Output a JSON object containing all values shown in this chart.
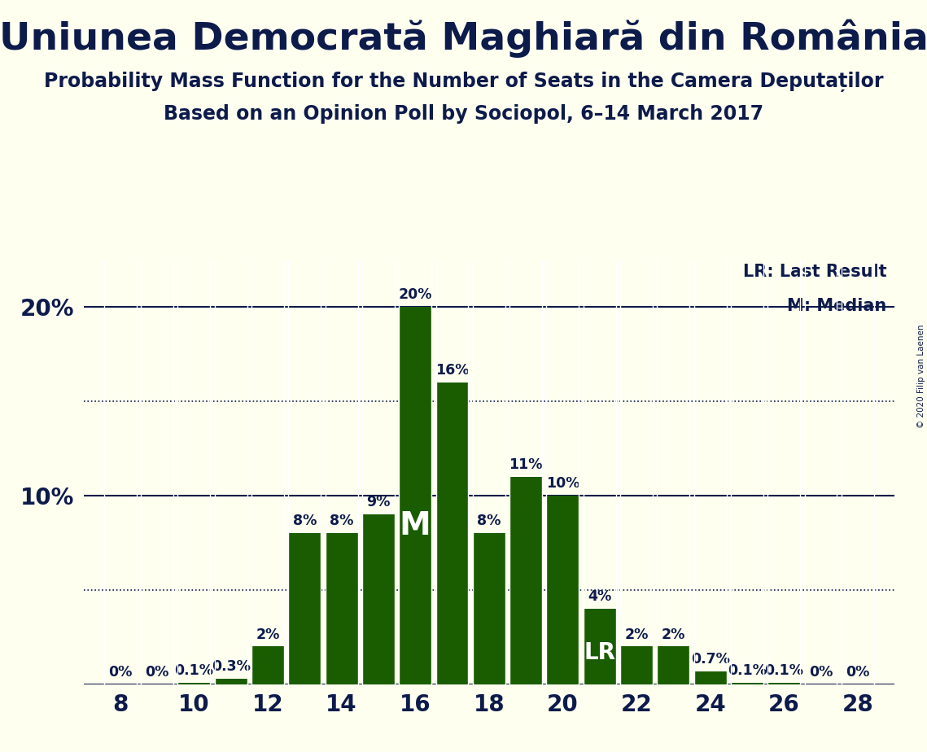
{
  "title": "Uniunea Democrată Maghiară din România",
  "subtitle1": "Probability Mass Function for the Number of Seats in the Camera Deputaților",
  "subtitle2": "Based on an Opinion Poll by Sociopol, 6–14 March 2017",
  "copyright": "© 2020 Filip van Laenen",
  "seats": [
    8,
    9,
    10,
    11,
    12,
    13,
    14,
    15,
    16,
    17,
    18,
    19,
    20,
    21,
    22,
    23,
    24,
    25,
    26,
    27,
    28
  ],
  "values": [
    0.0,
    0.0,
    0.1,
    0.3,
    2.0,
    8.0,
    8.0,
    9.0,
    20.0,
    16.0,
    8.0,
    11.0,
    10.0,
    4.0,
    2.0,
    2.0,
    0.7,
    0.1,
    0.1,
    0.0,
    0.0
  ],
  "labels": [
    "0%",
    "0%",
    "0.1%",
    "0.3%",
    "2%",
    "8%",
    "8%",
    "9%",
    "20%",
    "16%",
    "8%",
    "11%",
    "10%",
    "4%",
    "2%",
    "2%",
    "0.7%",
    "0.1%",
    "0.1%",
    "0%",
    "0%"
  ],
  "bar_color": "#1a5c00",
  "background_color": "#fffff0",
  "text_color": "#0d1b4b",
  "median_seat": 16,
  "last_result_seat": 21,
  "yticks": [
    0,
    10,
    20
  ],
  "dotted_lines": [
    5,
    15
  ],
  "ylim": [
    0,
    22.5
  ],
  "xlim": [
    7.0,
    29.0
  ],
  "xticks": [
    8,
    10,
    12,
    14,
    16,
    18,
    20,
    22,
    24,
    26,
    28
  ],
  "legend_lr": "LR: Last Result",
  "legend_m": "M: Median",
  "legend_fontsize": 15,
  "title_fontsize": 34,
  "subtitle1_fontsize": 17,
  "subtitle2_fontsize": 17,
  "bar_label_fontsize": 12.5,
  "tick_fontsize": 20,
  "bar_width": 0.88
}
